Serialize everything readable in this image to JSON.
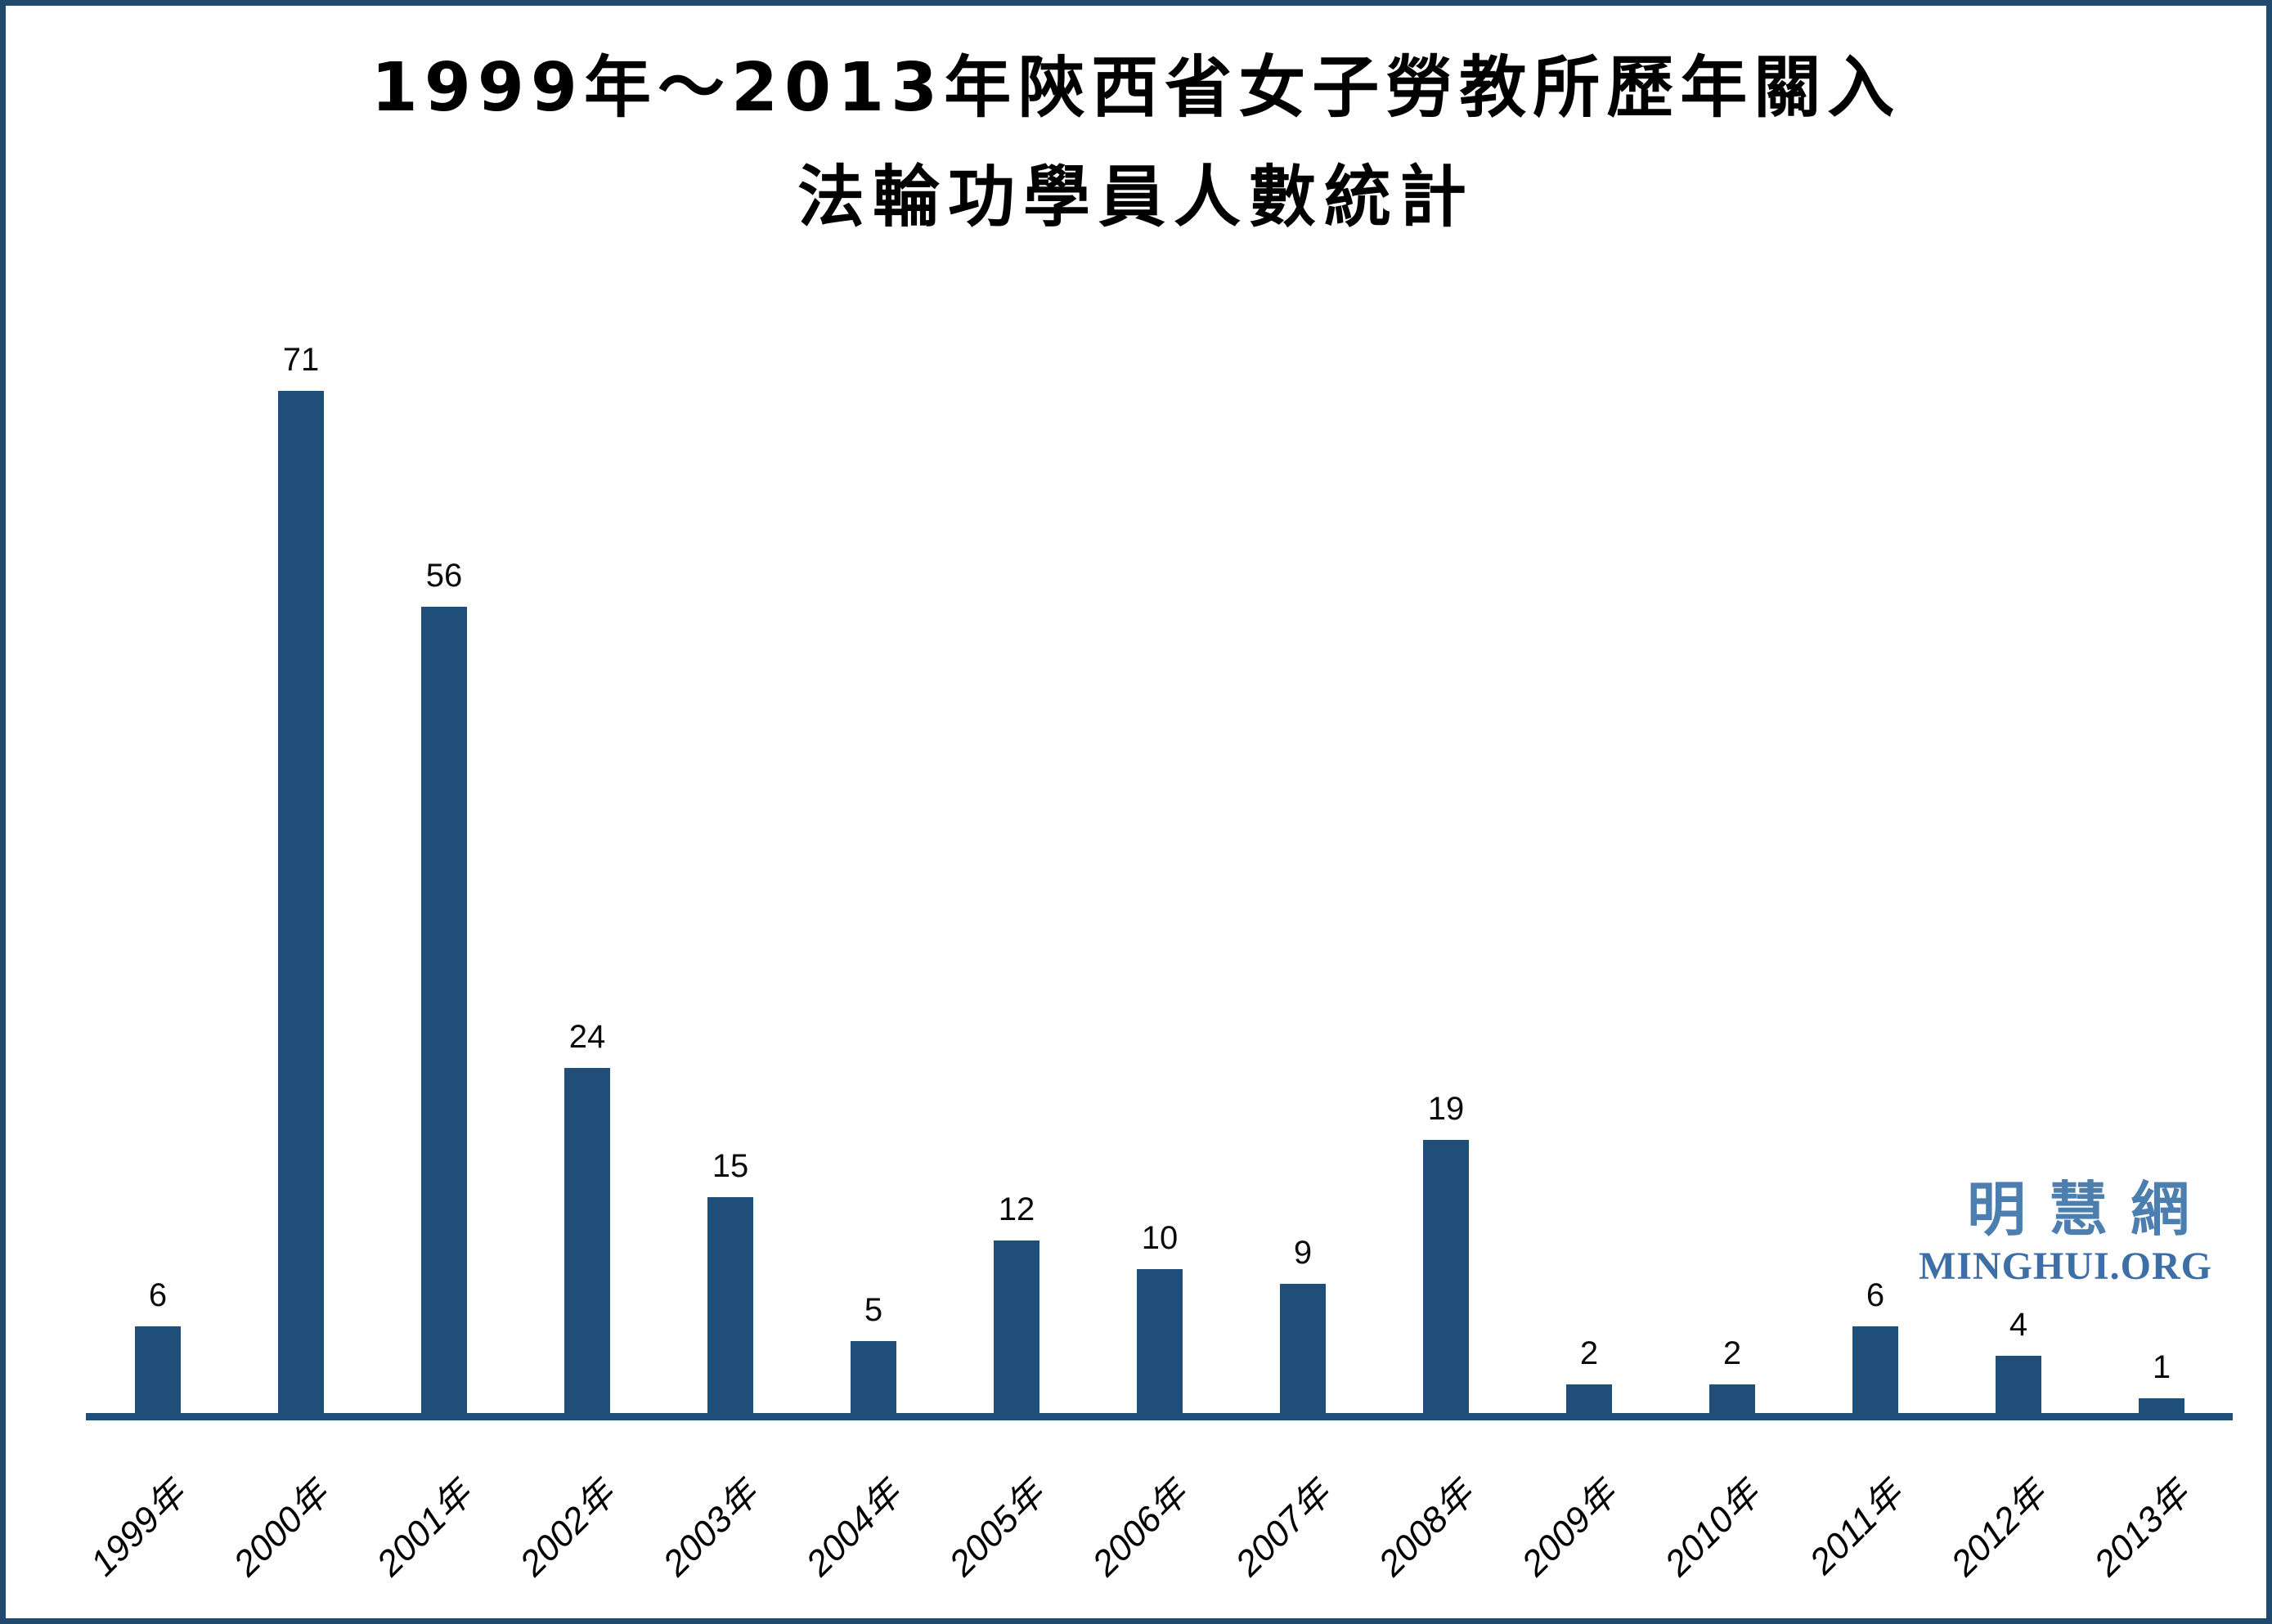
{
  "title": {
    "line1": "1999年～2013年陝西省女子勞教所歷年關入",
    "line2": "法輪功學員人數統計"
  },
  "logo": {
    "cjk": "明慧網",
    "latin": "MINGHUI.ORG",
    "cjk_color": "#4C7FB0",
    "latin_color": "#3D6EA5"
  },
  "chart_data": {
    "type": "bar",
    "title": "1999年～2013年陝西省女子勞教所歷年關入法輪功學員人數統計",
    "categories": [
      "1999年",
      "2000年",
      "2001年",
      "2002年",
      "2003年",
      "2004年",
      "2005年",
      "2006年",
      "2007年",
      "2008年",
      "2009年",
      "2010年",
      "2011年",
      "2012年",
      "2013年"
    ],
    "values": [
      6,
      71,
      56,
      24,
      15,
      5,
      12,
      10,
      9,
      19,
      2,
      2,
      6,
      4,
      1
    ],
    "xlabel": "",
    "ylabel": "",
    "ylim": [
      0,
      75
    ],
    "grid": false,
    "legend": false,
    "data_labels": true,
    "bar_color": "#1F4E79",
    "axis_color": "#1F4E79",
    "label_color": "#0a0a0a",
    "frame_border_color": "#1F4A6E"
  }
}
